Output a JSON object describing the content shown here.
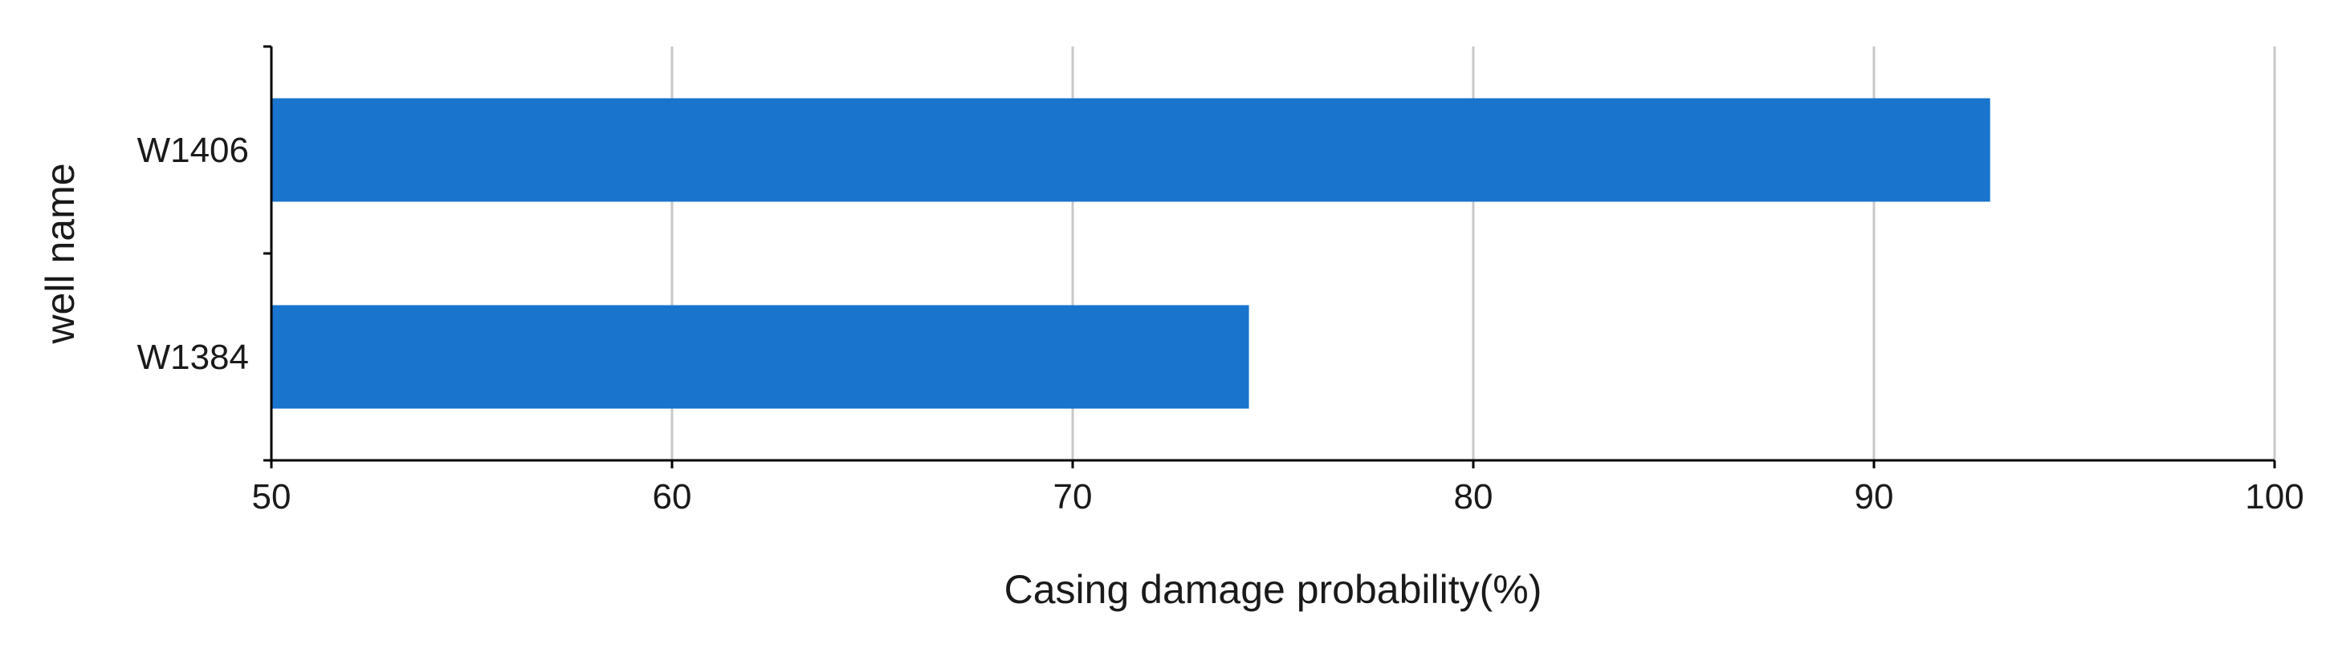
{
  "chart_data": {
    "type": "bar",
    "orientation": "horizontal",
    "categories": [
      "W1406",
      "W1384"
    ],
    "values": [
      92.9,
      74.4
    ],
    "xlabel": "Casing damage probability(%)",
    "ylabel": "well name",
    "xlim": [
      50,
      100
    ],
    "xticks": [
      50,
      60,
      70,
      80,
      90,
      100
    ],
    "grid": "vertical",
    "bar_color": "#1874CD"
  }
}
